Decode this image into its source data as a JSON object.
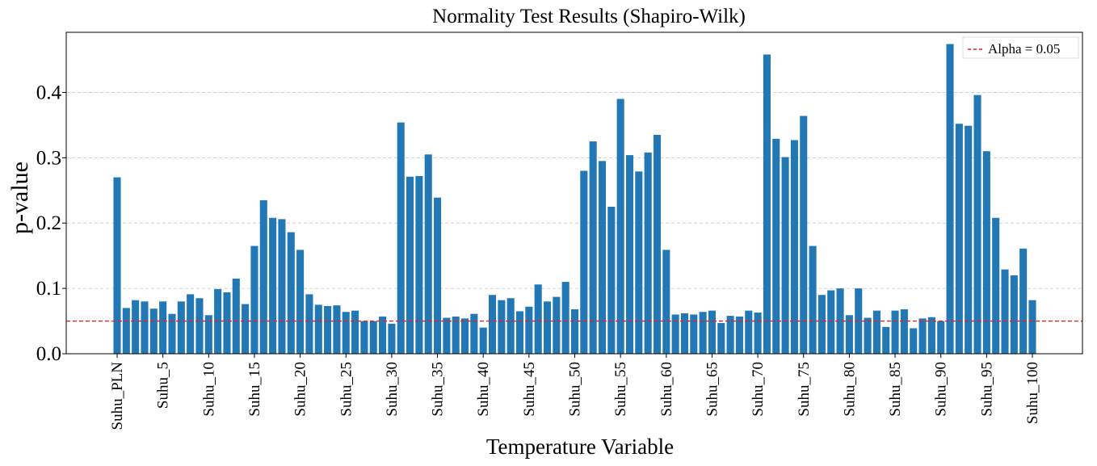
{
  "chart_data": {
    "type": "bar",
    "title": "Normality Test Results (Shapiro-Wilk)",
    "xlabel": "Temperature Variable",
    "ylabel": "p-value",
    "ylim": [
      0,
      0.492
    ],
    "yticks": [
      0.0,
      0.1,
      0.2,
      0.3,
      0.4
    ],
    "ytick_labels": [
      "0.0",
      "0.1",
      "0.2",
      "0.3",
      "0.4"
    ],
    "grid": "horizontal dashed",
    "bar_color": "#2178b5",
    "categories": [
      "Suhu_PLN",
      "Suhu_1",
      "Suhu_2",
      "Suhu_3",
      "Suhu_4",
      "Suhu_5",
      "Suhu_6",
      "Suhu_7",
      "Suhu_8",
      "Suhu_9",
      "Suhu_10",
      "Suhu_11",
      "Suhu_12",
      "Suhu_13",
      "Suhu_14",
      "Suhu_15",
      "Suhu_16",
      "Suhu_17",
      "Suhu_18",
      "Suhu_19",
      "Suhu_20",
      "Suhu_21",
      "Suhu_22",
      "Suhu_23",
      "Suhu_24",
      "Suhu_25",
      "Suhu_26",
      "Suhu_27",
      "Suhu_28",
      "Suhu_29",
      "Suhu_30",
      "Suhu_31",
      "Suhu_32",
      "Suhu_33",
      "Suhu_34",
      "Suhu_35",
      "Suhu_36",
      "Suhu_37",
      "Suhu_38",
      "Suhu_39",
      "Suhu_40",
      "Suhu_41",
      "Suhu_42",
      "Suhu_43",
      "Suhu_44",
      "Suhu_45",
      "Suhu_46",
      "Suhu_47",
      "Suhu_48",
      "Suhu_49",
      "Suhu_50",
      "Suhu_51",
      "Suhu_52",
      "Suhu_53",
      "Suhu_54",
      "Suhu_55",
      "Suhu_56",
      "Suhu_57",
      "Suhu_58",
      "Suhu_59",
      "Suhu_60",
      "Suhu_61",
      "Suhu_62",
      "Suhu_63",
      "Suhu_64",
      "Suhu_65",
      "Suhu_66",
      "Suhu_67",
      "Suhu_68",
      "Suhu_69",
      "Suhu_70",
      "Suhu_71",
      "Suhu_72",
      "Suhu_73",
      "Suhu_74",
      "Suhu_75",
      "Suhu_76",
      "Suhu_77",
      "Suhu_78",
      "Suhu_79",
      "Suhu_80",
      "Suhu_81",
      "Suhu_82",
      "Suhu_83",
      "Suhu_84",
      "Suhu_85",
      "Suhu_86",
      "Suhu_87",
      "Suhu_88",
      "Suhu_89",
      "Suhu_90",
      "Suhu_91",
      "Suhu_92",
      "Suhu_93",
      "Suhu_94",
      "Suhu_95",
      "Suhu_96",
      "Suhu_97",
      "Suhu_98",
      "Suhu_99",
      "Suhu_100"
    ],
    "values": [
      0.27,
      0.07,
      0.082,
      0.08,
      0.069,
      0.08,
      0.061,
      0.08,
      0.091,
      0.085,
      0.059,
      0.099,
      0.094,
      0.115,
      0.076,
      0.165,
      0.235,
      0.208,
      0.206,
      0.186,
      0.159,
      0.091,
      0.075,
      0.073,
      0.074,
      0.064,
      0.066,
      0.05,
      0.05,
      0.057,
      0.046,
      0.354,
      0.271,
      0.272,
      0.305,
      0.239,
      0.055,
      0.057,
      0.054,
      0.061,
      0.04,
      0.09,
      0.082,
      0.085,
      0.065,
      0.072,
      0.106,
      0.08,
      0.087,
      0.11,
      0.068,
      0.28,
      0.325,
      0.295,
      0.225,
      0.39,
      0.304,
      0.279,
      0.308,
      0.335,
      0.159,
      0.06,
      0.062,
      0.06,
      0.064,
      0.066,
      0.047,
      0.058,
      0.057,
      0.066,
      0.063,
      0.458,
      0.329,
      0.301,
      0.327,
      0.364,
      0.165,
      0.09,
      0.097,
      0.1,
      0.059,
      0.1,
      0.055,
      0.066,
      0.041,
      0.066,
      0.068,
      0.039,
      0.054,
      0.056,
      0.05,
      0.474,
      0.352,
      0.349,
      0.396,
      0.31,
      0.208,
      0.129,
      0.12,
      0.161,
      0.082
    ],
    "xtick_labels": [
      {
        "index": 0,
        "label": "Suhu_PLN"
      },
      {
        "index": 5,
        "label": "Suhu_5"
      },
      {
        "index": 10,
        "label": "Suhu_10"
      },
      {
        "index": 15,
        "label": "Suhu_15"
      },
      {
        "index": 20,
        "label": "Suhu_20"
      },
      {
        "index": 25,
        "label": "Suhu_25"
      },
      {
        "index": 30,
        "label": "Suhu_30"
      },
      {
        "index": 35,
        "label": "Suhu_35"
      },
      {
        "index": 40,
        "label": "Suhu_40"
      },
      {
        "index": 45,
        "label": "Suhu_45"
      },
      {
        "index": 50,
        "label": "Suhu_50"
      },
      {
        "index": 55,
        "label": "Suhu_55"
      },
      {
        "index": 60,
        "label": "Suhu_60"
      },
      {
        "index": 65,
        "label": "Suhu_65"
      },
      {
        "index": 70,
        "label": "Suhu_70"
      },
      {
        "index": 75,
        "label": "Suhu_75"
      },
      {
        "index": 80,
        "label": "Suhu_80"
      },
      {
        "index": 85,
        "label": "Suhu_85"
      },
      {
        "index": 90,
        "label": "Suhu_90"
      },
      {
        "index": 95,
        "label": "Suhu_95"
      },
      {
        "index": 100,
        "label": "Suhu_100"
      }
    ],
    "reference_line": {
      "value": 0.05,
      "label": "Alpha = 0.05",
      "color": "#e8211c",
      "style": "dashed"
    },
    "legend": {
      "position": "top-right",
      "entries": [
        "Alpha = 0.05"
      ]
    }
  }
}
